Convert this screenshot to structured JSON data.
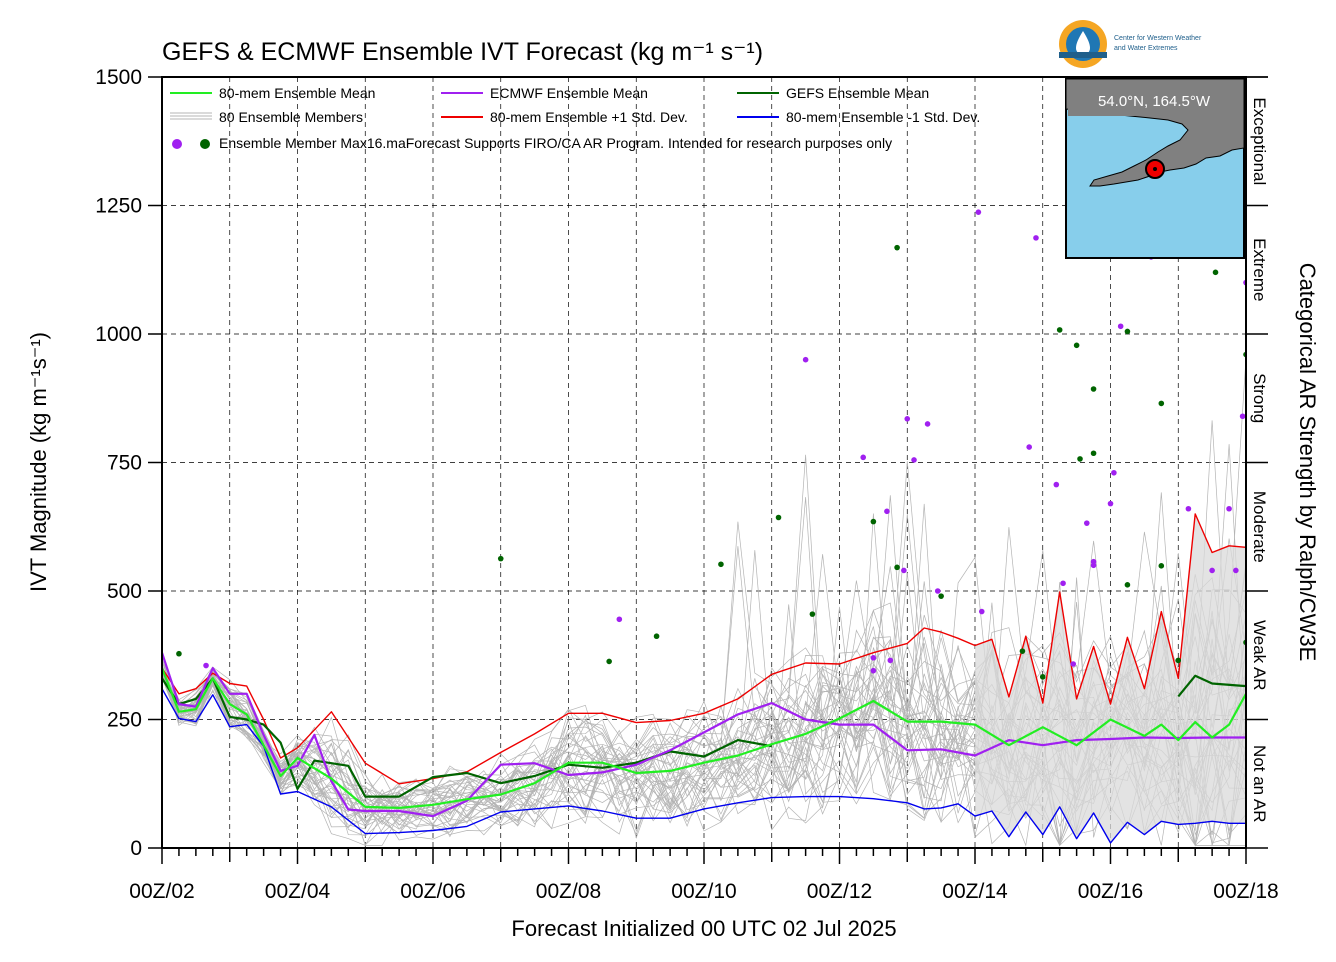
{
  "chart_data": {
    "type": "line",
    "title": "GEFS & ECMWF Ensemble IVT Forecast (kg m⁻¹ s⁻¹)",
    "xlabel": "Forecast Initialized 00 UTC 02 Jul 2025",
    "ylabel": "IVT Magnitude (kg m⁻¹s⁻¹)",
    "right_label": "Categorical AR Strength by Ralph/CW3E",
    "x_unit": "days since 00Z/02",
    "xlim": [
      0,
      16
    ],
    "ylim": [
      0,
      1500
    ],
    "grid": true,
    "x_ticks": [
      0,
      2,
      4,
      6,
      8,
      10,
      12,
      14,
      16
    ],
    "x_tick_labels": [
      "00Z/02",
      "00Z/04",
      "00Z/06",
      "00Z/08",
      "00Z/10",
      "00Z/12",
      "00Z/14",
      "00Z/16",
      "00Z/18"
    ],
    "y_ticks": [
      0,
      250,
      500,
      750,
      1000,
      1250,
      1500
    ],
    "y_tick_labels": [
      "0",
      "250",
      "500",
      "750",
      "1000",
      "1250",
      "1500"
    ],
    "categories_ar": [
      {
        "label": "Not an AR",
        "from": 0,
        "to": 250
      },
      {
        "label": "Weak AR",
        "from": 250,
        "to": 500
      },
      {
        "label": "Moderate",
        "from": 500,
        "to": 750
      },
      {
        "label": "Strong",
        "from": 750,
        "to": 1000
      },
      {
        "label": "Extreme",
        "from": 1000,
        "to": 1250
      },
      {
        "label": "Exceptional",
        "from": 1250,
        "to": 1500
      }
    ],
    "legend_placement": "top-left",
    "legend": {
      "ens_mean": "80-mem Ensemble Mean",
      "members": "80 Ensemble Members",
      "ecmwf_mean": "ECMWF Ensemble Mean",
      "plus_sd": "80-mem Ensemble +1 Std. Dev.",
      "gefs_mean": "GEFS Ensemble Mean",
      "minus_sd": "80-mem Ensemble -1 Std. Dev.",
      "max_label": "Ensemble Member Max",
      "note": "16.maForecast Supports FIRO/CA AR Program. Intended for research purposes only"
    },
    "colors": {
      "ens_mean": "#22ee22",
      "ecmwf_mean": "#a020f0",
      "gefs_mean": "#006400",
      "plus_sd": "#ee0000",
      "minus_sd": "#0000ee",
      "members": "#b4b4b4",
      "spread_fill": "#d9d9d9",
      "map_water": "#87ceeb",
      "map_land": "#808080"
    },
    "series": [
      {
        "name": "80-mem Ensemble Mean",
        "key": "ens_mean",
        "x": [
          0,
          0.25,
          0.5,
          0.75,
          1,
          1.25,
          1.5,
          1.75,
          2,
          2.5,
          3,
          3.5,
          4,
          4.5,
          5,
          5.5,
          6,
          6.5,
          7,
          7.5,
          8,
          8.5,
          9,
          9.5,
          10,
          10.5,
          11,
          11.5,
          12,
          12.5,
          13,
          13.5,
          14,
          14.5,
          14.75,
          15,
          15.25,
          15.5,
          15.75,
          16
        ],
        "y": [
          350,
          265,
          270,
          330,
          280,
          260,
          200,
          140,
          175,
          135,
          80,
          78,
          84,
          95,
          104,
          126,
          166,
          166,
          146,
          150,
          166,
          180,
          202,
          222,
          252,
          286,
          246,
          246,
          240,
          200,
          235,
          200,
          250,
          218,
          240,
          210,
          245,
          215,
          240,
          300
        ]
      },
      {
        "name": "ECMWF Ensemble Mean",
        "key": "ecmwf_mean",
        "x": [
          0,
          0.25,
          0.5,
          0.75,
          1,
          1.25,
          1.5,
          1.75,
          2,
          2.25,
          2.5,
          2.75,
          3,
          3.5,
          4,
          4.5,
          5,
          5.5,
          6,
          6.5,
          7,
          7.5,
          8,
          8.5,
          9,
          9.5,
          10,
          10.5,
          11,
          11.5,
          12,
          12.5,
          13,
          13.5,
          14,
          14.5,
          15,
          15.5,
          16
        ],
        "y": [
          380,
          280,
          275,
          350,
          300,
          300,
          220,
          150,
          160,
          220,
          130,
          75,
          72,
          72,
          62,
          92,
          162,
          165,
          142,
          147,
          162,
          190,
          225,
          260,
          282,
          250,
          240,
          240,
          190,
          192,
          180,
          210,
          200,
          210,
          212,
          215,
          214,
          215,
          215
        ]
      },
      {
        "name": "GEFS Ensemble Mean",
        "key": "gefs_mean",
        "x": [
          0,
          0.25,
          0.5,
          0.75,
          1,
          1.25,
          1.5,
          1.75,
          2,
          2.25,
          2.5,
          2.75,
          3,
          3.5,
          4,
          4.5,
          5,
          5.5,
          6,
          6.5,
          7,
          7.5,
          8,
          8.5,
          9,
          9.5,
          10,
          10.5,
          11,
          11.5,
          12,
          12.5,
          13,
          13.5,
          14,
          14.5,
          15,
          15.25,
          15.5,
          16
        ],
        "y": [
          330,
          280,
          290,
          330,
          255,
          250,
          240,
          205,
          115,
          170,
          165,
          160,
          100,
          100,
          138,
          146,
          126,
          140,
          162,
          156,
          166,
          188,
          178,
          210,
          198,
          null,
          null,
          null,
          null,
          null,
          null,
          null,
          null,
          null,
          null,
          null,
          295,
          335,
          320,
          315
        ]
      },
      {
        "name": "80-mem Ensemble +1 Std. Dev.",
        "key": "plus_sd",
        "x": [
          0,
          0.25,
          0.5,
          0.75,
          1,
          1.25,
          1.5,
          1.75,
          2,
          2.5,
          3,
          3.5,
          4,
          4.5,
          5,
          5.5,
          6,
          6.5,
          7,
          7.5,
          8,
          8.5,
          9,
          9.5,
          10,
          10.5,
          11,
          11.25,
          11.5,
          11.75,
          12,
          12.25,
          12.5,
          12.75,
          13,
          13.25,
          13.5,
          13.75,
          14,
          14.25,
          14.5,
          14.75,
          15,
          15.25,
          15.5,
          15.75,
          16
        ],
        "y": [
          350,
          300,
          310,
          340,
          320,
          315,
          250,
          175,
          195,
          265,
          165,
          125,
          135,
          148,
          186,
          222,
          262,
          262,
          244,
          248,
          262,
          290,
          338,
          360,
          358,
          380,
          398,
          428,
          420,
          408,
          394,
          406,
          294,
          412,
          282,
          498,
          290,
          392,
          280,
          410,
          310,
          460,
          330,
          650,
          575,
          588,
          585
        ]
      },
      {
        "name": "80-mem Ensemble -1 Std. Dev.",
        "key": "minus_sd",
        "x": [
          0,
          0.25,
          0.5,
          0.75,
          1,
          1.25,
          1.5,
          1.75,
          2,
          2.5,
          3,
          3.5,
          4,
          4.5,
          5,
          5.5,
          6,
          6.5,
          7,
          7.5,
          8,
          8.5,
          9,
          9.5,
          10,
          10.5,
          11,
          11.25,
          11.5,
          11.75,
          12,
          12.25,
          12.5,
          12.75,
          13,
          13.25,
          13.5,
          13.75,
          14,
          14.25,
          14.5,
          14.75,
          15,
          15.25,
          15.5,
          15.75,
          16
        ],
        "y": [
          310,
          252,
          246,
          298,
          236,
          240,
          198,
          105,
          110,
          80,
          28,
          30,
          34,
          42,
          70,
          76,
          82,
          72,
          58,
          58,
          76,
          88,
          98,
          100,
          100,
          96,
          88,
          76,
          78,
          86,
          62,
          72,
          22,
          70,
          26,
          80,
          18,
          68,
          10,
          50,
          26,
          52,
          46,
          48,
          52,
          48,
          48
        ]
      }
    ],
    "spread_band": {
      "x": [
        12,
        16
      ],
      "upper_key": "plus_sd",
      "lower_key": "minus_sd"
    },
    "max_points": {
      "ecmwf": [
        {
          "x": 0.65,
          "y": 355
        },
        {
          "x": 6.75,
          "y": 445
        },
        {
          "x": 9.5,
          "y": 950
        },
        {
          "x": 10.35,
          "y": 760
        },
        {
          "x": 10.5,
          "y": 370
        },
        {
          "x": 10.5,
          "y": 345
        },
        {
          "x": 10.7,
          "y": 655
        },
        {
          "x": 10.75,
          "y": 365
        },
        {
          "x": 10.95,
          "y": 540
        },
        {
          "x": 11.0,
          "y": 835
        },
        {
          "x": 11.1,
          "y": 755
        },
        {
          "x": 11.3,
          "y": 825
        },
        {
          "x": 11.45,
          "y": 500
        },
        {
          "x": 12.05,
          "y": 1237
        },
        {
          "x": 12.1,
          "y": 460
        },
        {
          "x": 12.8,
          "y": 780
        },
        {
          "x": 12.9,
          "y": 1187
        },
        {
          "x": 13.2,
          "y": 707
        },
        {
          "x": 13.3,
          "y": 515
        },
        {
          "x": 13.45,
          "y": 358
        },
        {
          "x": 13.65,
          "y": 632
        },
        {
          "x": 13.75,
          "y": 557
        },
        {
          "x": 13.75,
          "y": 550
        },
        {
          "x": 14.0,
          "y": 670
        },
        {
          "x": 14.05,
          "y": 730
        },
        {
          "x": 14.15,
          "y": 1015
        },
        {
          "x": 14.4,
          "y": 1245
        },
        {
          "x": 14.6,
          "y": 1150
        },
        {
          "x": 15.15,
          "y": 660
        },
        {
          "x": 15.5,
          "y": 540
        },
        {
          "x": 15.75,
          "y": 660
        },
        {
          "x": 15.85,
          "y": 540
        },
        {
          "x": 15.95,
          "y": 840
        },
        {
          "x": 16.0,
          "y": 1100
        }
      ],
      "gefs": [
        {
          "x": 0.25,
          "y": 378
        },
        {
          "x": 5.0,
          "y": 563
        },
        {
          "x": 7.3,
          "y": 412
        },
        {
          "x": 6.6,
          "y": 363
        },
        {
          "x": 8.25,
          "y": 552
        },
        {
          "x": 9.1,
          "y": 643
        },
        {
          "x": 9.6,
          "y": 455
        },
        {
          "x": 10.5,
          "y": 635
        },
        {
          "x": 10.85,
          "y": 1168
        },
        {
          "x": 10.85,
          "y": 546
        },
        {
          "x": 11.5,
          "y": 490
        },
        {
          "x": 12.7,
          "y": 383
        },
        {
          "x": 13.0,
          "y": 333
        },
        {
          "x": 13.25,
          "y": 1008
        },
        {
          "x": 13.5,
          "y": 978
        },
        {
          "x": 13.55,
          "y": 757
        },
        {
          "x": 13.75,
          "y": 893
        },
        {
          "x": 13.75,
          "y": 768
        },
        {
          "x": 14.25,
          "y": 1005
        },
        {
          "x": 14.25,
          "y": 512
        },
        {
          "x": 14.75,
          "y": 865
        },
        {
          "x": 14.75,
          "y": 549
        },
        {
          "x": 15.0,
          "y": 365
        },
        {
          "x": 15.55,
          "y": 1120
        },
        {
          "x": 16.0,
          "y": 960
        },
        {
          "x": 16.0,
          "y": 400
        }
      ]
    },
    "inset_map": {
      "location_label": "54.0°N, 164.5°W"
    },
    "logo": {
      "text_line1": "Center for Western Weather",
      "text_line2": "and Water Extremes"
    }
  }
}
